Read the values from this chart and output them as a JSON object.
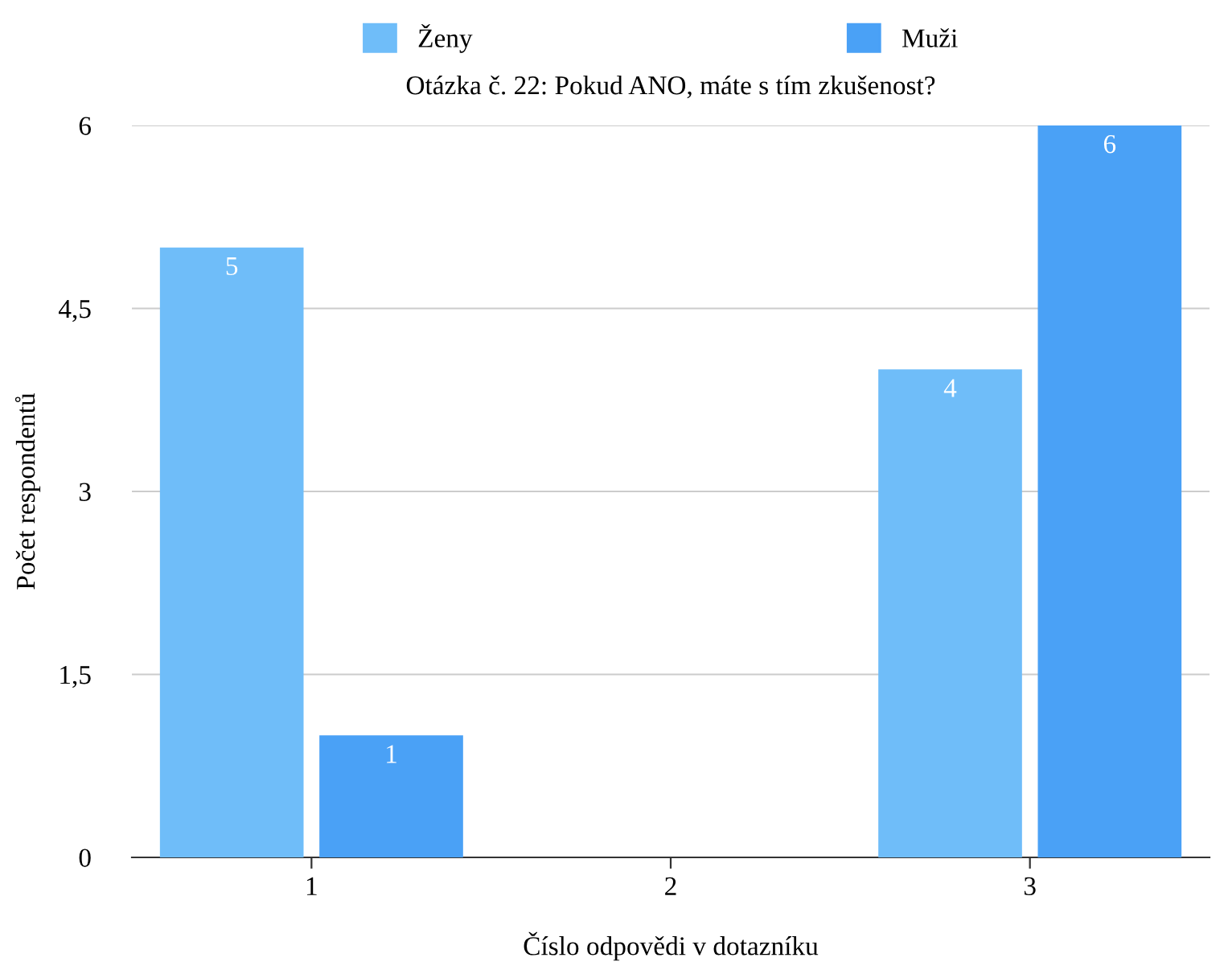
{
  "chart_data": {
    "type": "bar",
    "title": "Otázka č. 22: Pokud ANO, máte s tím zkušenost?",
    "xlabel": "Číslo odpovědi v dotazníku",
    "ylabel": "Počet respondentů",
    "categories": [
      "1",
      "2",
      "3"
    ],
    "series": [
      {
        "name": "Ženy",
        "color": "#6fbdf9",
        "values": [
          5,
          null,
          4
        ]
      },
      {
        "name": "Muži",
        "color": "#4aa1f6",
        "values": [
          1,
          null,
          6
        ]
      }
    ],
    "ylim": [
      0,
      6
    ],
    "yticks": [
      0,
      {
        "value": 1.5,
        "label": "1,5"
      },
      3,
      {
        "value": 4.5,
        "label": "4,5"
      },
      6
    ],
    "grid": "y",
    "legend": "top",
    "data_labels": true
  }
}
